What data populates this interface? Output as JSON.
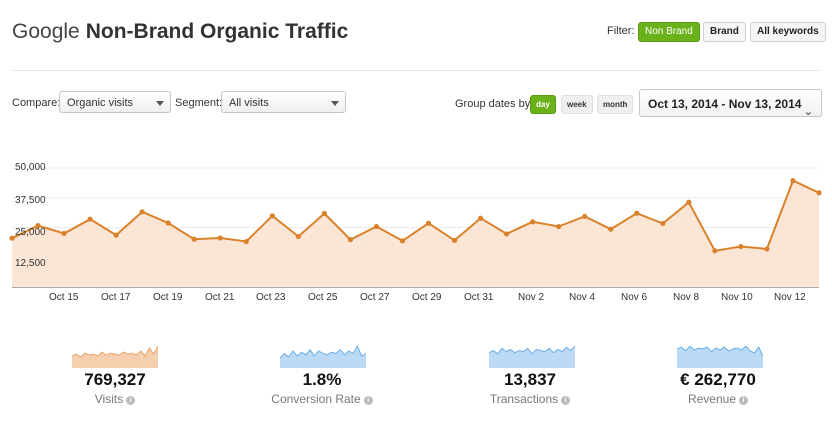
{
  "header": {
    "title_prefix": "Google",
    "title_strong": "Non-Brand Organic Traffic",
    "filter_label": "Filter:",
    "filters": [
      "Non Brand",
      "Brand",
      "All keywords"
    ],
    "active_filter": "Non Brand"
  },
  "controls": {
    "compare_label": "Compare:",
    "compare_value": "Organic visits",
    "segment_label": "Segment:",
    "segment_value": "All visits",
    "group_label": "Group dates by:",
    "group_options": [
      "day",
      "week",
      "month"
    ],
    "active_group": "day",
    "date_range": "Oct 13, 2014 - Nov 13, 2014",
    "chevron_icon": "chevron-down-icon"
  },
  "chart_data": {
    "type": "area",
    "y_ticks": [
      "50,000",
      "37,500",
      "25,000",
      "12,500"
    ],
    "ylim": [
      0,
      50000
    ],
    "x_labels": [
      "Oct 15",
      "Oct 17",
      "Oct 19",
      "Oct 21",
      "Oct 23",
      "Oct 25",
      "Oct 27",
      "Oct 29",
      "Oct 31",
      "Nov 2",
      "Nov 4",
      "Nov 6",
      "Nov 8",
      "Nov 10",
      "Nov 12"
    ],
    "x": [
      "Oct 13",
      "Oct 14",
      "Oct 15",
      "Oct 16",
      "Oct 17",
      "Oct 18",
      "Oct 19",
      "Oct 20",
      "Oct 21",
      "Oct 22",
      "Oct 23",
      "Oct 24",
      "Oct 25",
      "Oct 26",
      "Oct 27",
      "Oct 28",
      "Oct 29",
      "Oct 30",
      "Oct 31",
      "Nov 1",
      "Nov 2",
      "Nov 3",
      "Nov 4",
      "Nov 5",
      "Nov 6",
      "Nov 7",
      "Nov 8",
      "Nov 9",
      "Nov 10",
      "Nov 11",
      "Nov 12",
      "Nov 13"
    ],
    "values": [
      20500,
      25800,
      22500,
      28500,
      21800,
      31600,
      26900,
      20100,
      20600,
      19100,
      29900,
      21200,
      30900,
      19900,
      25400,
      19400,
      26800,
      19600,
      28900,
      22300,
      27400,
      25400,
      29700,
      24300,
      31000,
      26700,
      35600,
      15200,
      17000,
      16000,
      44700,
      39600
    ],
    "line_color": "#d9822b",
    "fill_color": "#fbe6d6",
    "grid": true
  },
  "metrics": [
    {
      "value": "769,327",
      "label": "Visits",
      "color": "#e8a06c",
      "fill": "#f6cfae",
      "spark": [
        12,
        14,
        11,
        15,
        13,
        14,
        12,
        16,
        13,
        15,
        14,
        13,
        16,
        14,
        15,
        13,
        17,
        12,
        20,
        14,
        22
      ]
    },
    {
      "value": "1.8%",
      "label": "Conversion Rate",
      "color": "#6aaee8",
      "fill": "#bcdaf6",
      "spark": [
        8,
        12,
        9,
        14,
        10,
        13,
        11,
        15,
        10,
        14,
        12,
        11,
        13,
        12,
        15,
        11,
        14,
        12,
        18,
        10,
        12
      ]
    },
    {
      "value": "13,837",
      "label": "Transactions",
      "color": "#6aaee8",
      "fill": "#bcdaf6",
      "spark": [
        14,
        16,
        13,
        18,
        15,
        17,
        14,
        16,
        15,
        18,
        13,
        17,
        16,
        15,
        18,
        14,
        17,
        15,
        19,
        16,
        20
      ]
    },
    {
      "value": "€ 262,770",
      "label": "Revenue",
      "color": "#6aaee8",
      "fill": "#bcdaf6",
      "spark": [
        20,
        22,
        18,
        23,
        19,
        21,
        20,
        22,
        17,
        21,
        19,
        22,
        18,
        20,
        21,
        19,
        23,
        18,
        16,
        22,
        12
      ]
    }
  ]
}
